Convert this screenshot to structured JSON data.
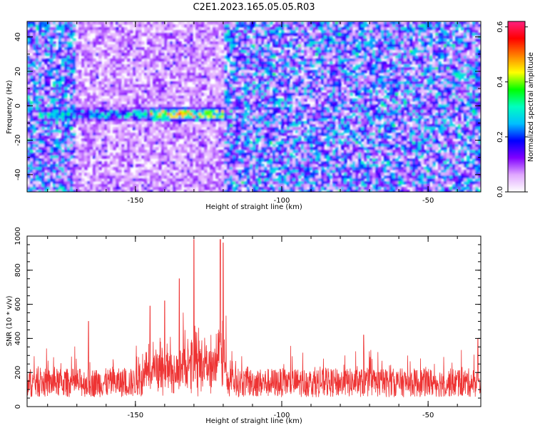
{
  "title": "C2E1.2023.165.05.05.R03",
  "chart_data": [
    {
      "type": "heatmap",
      "title": "",
      "xlabel": "Height of straight line (km)",
      "ylabel": "Frequency (Hz)",
      "xlim": [
        -187,
        -32
      ],
      "ylim": [
        -50,
        49
      ],
      "x_ticks": [
        -150,
        -100,
        -50
      ],
      "y_ticks": [
        -40,
        -20,
        0,
        20,
        40
      ],
      "colorbar": {
        "label": "Normalized spectral amplitude",
        "range": [
          0,
          0.62
        ],
        "ticks": [
          0.0,
          0.2,
          0.4,
          0.6
        ],
        "colors": [
          "#ffffff",
          "#e0a8ff",
          "#8000ff",
          "#0000ff",
          "#00c0ff",
          "#00ffc0",
          "#00ff00",
          "#ffff00",
          "#ff8000",
          "#ff0000",
          "#ff2080"
        ]
      },
      "features": [
        {
          "x_range": [
            -183,
            -120
          ],
          "y_center": -5,
          "y_halfwidth": 4,
          "amplitude": 0.35
        },
        {
          "x_range": [
            -145,
            -120
          ],
          "y_center": -5,
          "y_halfwidth": 4,
          "amplitude": 0.55
        }
      ],
      "sparse_region_x": [
        -170,
        -120
      ]
    },
    {
      "type": "line",
      "title": "",
      "xlabel": "Height of straight line (km)",
      "ylabel": "SNR (10 * v/v)",
      "xlim": [
        -187,
        -32
      ],
      "ylim": [
        0,
        1000
      ],
      "x_ticks": [
        -150,
        -100,
        -50
      ],
      "y_ticks": [
        0,
        200,
        400,
        600,
        800,
        1000
      ],
      "color": "#ee3333",
      "baseline_mean": 140,
      "peaks": [
        {
          "x": -130,
          "y": 980
        },
        {
          "x": -121,
          "y": 980
        },
        {
          "x": -120,
          "y": 960
        },
        {
          "x": -135,
          "y": 750
        },
        {
          "x": -140,
          "y": 620
        },
        {
          "x": -145,
          "y": 590
        },
        {
          "x": -166,
          "y": 500
        },
        {
          "x": -72,
          "y": 420
        },
        {
          "x": -33,
          "y": 400
        }
      ]
    }
  ]
}
